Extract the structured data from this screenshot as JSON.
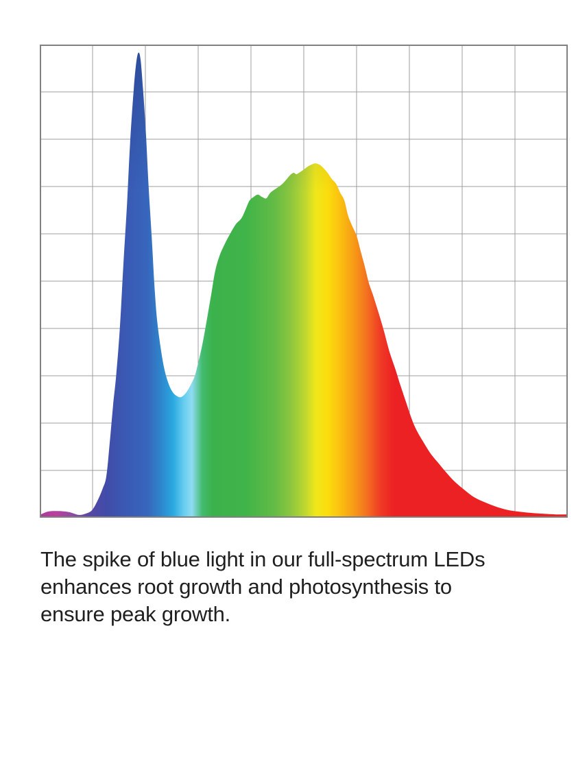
{
  "page": {
    "background": "#ffffff"
  },
  "caption": {
    "color": "#1f1f1f",
    "lines": [
      "The spike of blue light in our full-spectrum LEDs",
      "enhances root growth and photosynthesis to",
      "ensure peak growth."
    ]
  },
  "chart_data": {
    "type": "area",
    "title": "",
    "xlabel": "",
    "ylabel": "",
    "axis_tick_labels_visible": false,
    "legend": "none",
    "description": "Spectral power distribution of a full-spectrum LED: a tall narrow blue spike on the left and a broad green-yellow-orange-red hump, filled with a rainbow wavelength gradient over a square grid; axes are unlabeled.",
    "grid": {
      "cols": 10,
      "rows": 10,
      "line_color": "#9e9e9e",
      "frame_color": "#808080"
    },
    "x_range": [
      0,
      1
    ],
    "intensity_range": [
      0,
      1
    ],
    "peaks": [
      {
        "name": "blue spike peak",
        "x": 0.187,
        "intensity": 0.983
      },
      {
        "name": "valley between spike and hump",
        "x": 0.268,
        "intensity": 0.255
      },
      {
        "name": "broad hump peak (yellow)",
        "x": 0.522,
        "intensity": 0.749
      }
    ],
    "series": [
      {
        "name": "LED spectral output (relative intensity vs normalized wavelength position)",
        "points": [
          [
            0.0,
            0.006
          ],
          [
            0.016,
            0.013
          ],
          [
            0.035,
            0.014
          ],
          [
            0.055,
            0.012
          ],
          [
            0.074,
            0.006
          ],
          [
            0.088,
            0.009
          ],
          [
            0.099,
            0.016
          ],
          [
            0.109,
            0.035
          ],
          [
            0.119,
            0.061
          ],
          [
            0.126,
            0.087
          ],
          [
            0.132,
            0.152
          ],
          [
            0.139,
            0.239
          ],
          [
            0.145,
            0.304
          ],
          [
            0.152,
            0.406
          ],
          [
            0.158,
            0.529
          ],
          [
            0.165,
            0.659
          ],
          [
            0.171,
            0.79
          ],
          [
            0.178,
            0.906
          ],
          [
            0.183,
            0.964
          ],
          [
            0.187,
            0.983
          ],
          [
            0.191,
            0.967
          ],
          [
            0.196,
            0.899
          ],
          [
            0.201,
            0.812
          ],
          [
            0.206,
            0.703
          ],
          [
            0.212,
            0.594
          ],
          [
            0.217,
            0.493
          ],
          [
            0.222,
            0.42
          ],
          [
            0.229,
            0.359
          ],
          [
            0.236,
            0.314
          ],
          [
            0.244,
            0.283
          ],
          [
            0.252,
            0.265
          ],
          [
            0.26,
            0.257
          ],
          [
            0.268,
            0.255
          ],
          [
            0.277,
            0.264
          ],
          [
            0.286,
            0.281
          ],
          [
            0.294,
            0.301
          ],
          [
            0.301,
            0.332
          ],
          [
            0.309,
            0.372
          ],
          [
            0.317,
            0.422
          ],
          [
            0.325,
            0.474
          ],
          [
            0.332,
            0.52
          ],
          [
            0.34,
            0.552
          ],
          [
            0.351,
            0.58
          ],
          [
            0.361,
            0.601
          ],
          [
            0.371,
            0.62
          ],
          [
            0.382,
            0.633
          ],
          [
            0.39,
            0.652
          ],
          [
            0.397,
            0.67
          ],
          [
            0.405,
            0.678
          ],
          [
            0.413,
            0.683
          ],
          [
            0.421,
            0.678
          ],
          [
            0.429,
            0.675
          ],
          [
            0.436,
            0.686
          ],
          [
            0.444,
            0.693
          ],
          [
            0.452,
            0.699
          ],
          [
            0.46,
            0.706
          ],
          [
            0.468,
            0.716
          ],
          [
            0.475,
            0.725
          ],
          [
            0.481,
            0.729
          ],
          [
            0.486,
            0.726
          ],
          [
            0.491,
            0.729
          ],
          [
            0.499,
            0.735
          ],
          [
            0.506,
            0.741
          ],
          [
            0.514,
            0.746
          ],
          [
            0.522,
            0.749
          ],
          [
            0.53,
            0.746
          ],
          [
            0.538,
            0.738
          ],
          [
            0.545,
            0.729
          ],
          [
            0.553,
            0.716
          ],
          [
            0.561,
            0.706
          ],
          [
            0.569,
            0.687
          ],
          [
            0.577,
            0.67
          ],
          [
            0.584,
            0.638
          ],
          [
            0.592,
            0.616
          ],
          [
            0.6,
            0.596
          ],
          [
            0.608,
            0.562
          ],
          [
            0.616,
            0.529
          ],
          [
            0.623,
            0.497
          ],
          [
            0.631,
            0.471
          ],
          [
            0.642,
            0.432
          ],
          [
            0.652,
            0.394
          ],
          [
            0.662,
            0.352
          ],
          [
            0.674,
            0.312
          ],
          [
            0.683,
            0.28
          ],
          [
            0.694,
            0.243
          ],
          [
            0.704,
            0.21
          ],
          [
            0.714,
            0.184
          ],
          [
            0.727,
            0.159
          ],
          [
            0.74,
            0.136
          ],
          [
            0.756,
            0.114
          ],
          [
            0.771,
            0.094
          ],
          [
            0.787,
            0.075
          ],
          [
            0.805,
            0.058
          ],
          [
            0.823,
            0.043
          ],
          [
            0.844,
            0.032
          ],
          [
            0.865,
            0.023
          ],
          [
            0.888,
            0.016
          ],
          [
            0.914,
            0.012
          ],
          [
            0.944,
            0.009
          ],
          [
            0.977,
            0.007
          ],
          [
            1.0,
            0.007
          ]
        ]
      }
    ],
    "spectrum_gradient": [
      {
        "offset": 0.0,
        "color": "#A93A98"
      },
      {
        "offset": 0.03,
        "color": "#BC3F9D"
      },
      {
        "offset": 0.061,
        "color": "#8F4BA4"
      },
      {
        "offset": 0.094,
        "color": "#5847A5"
      },
      {
        "offset": 0.126,
        "color": "#414CA8"
      },
      {
        "offset": 0.165,
        "color": "#3A5AB4"
      },
      {
        "offset": 0.204,
        "color": "#3766BC"
      },
      {
        "offset": 0.23,
        "color": "#2E86CC"
      },
      {
        "offset": 0.252,
        "color": "#29A8E0"
      },
      {
        "offset": 0.273,
        "color": "#66CDEF"
      },
      {
        "offset": 0.288,
        "color": "#8FDCF2"
      },
      {
        "offset": 0.308,
        "color": "#43BB6E"
      },
      {
        "offset": 0.327,
        "color": "#3CB24C"
      },
      {
        "offset": 0.392,
        "color": "#41B449"
      },
      {
        "offset": 0.444,
        "color": "#63BB45"
      },
      {
        "offset": 0.477,
        "color": "#8FC73E"
      },
      {
        "offset": 0.503,
        "color": "#BFD730"
      },
      {
        "offset": 0.522,
        "color": "#EFE71B"
      },
      {
        "offset": 0.545,
        "color": "#FBDD0E"
      },
      {
        "offset": 0.568,
        "color": "#FBC110"
      },
      {
        "offset": 0.594,
        "color": "#F79C16"
      },
      {
        "offset": 0.62,
        "color": "#F37020"
      },
      {
        "offset": 0.645,
        "color": "#EF3B24"
      },
      {
        "offset": 0.671,
        "color": "#EC2124"
      },
      {
        "offset": 1.0,
        "color": "#EC2124"
      }
    ],
    "top_shading": {
      "color": "20,28,92",
      "opacity_top": 0.3,
      "fade_end_frac": 0.3
    }
  }
}
